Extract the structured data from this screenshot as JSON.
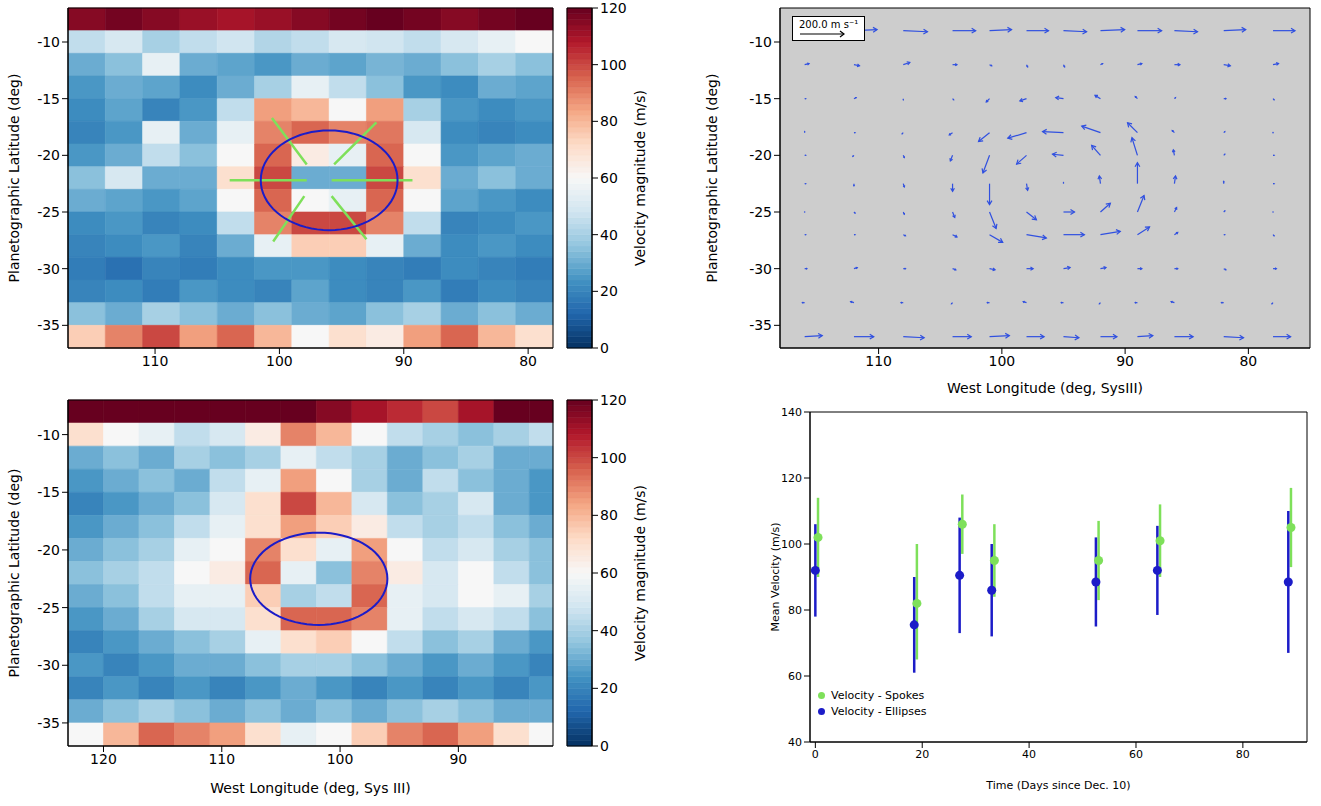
{
  "chart_data": [
    {
      "type": "heatmap",
      "y_label": "Planetographic Latitude (deg)",
      "xlim": [
        117,
        78
      ],
      "ylim": [
        -37,
        -7
      ],
      "xticks": [
        110,
        100,
        90,
        80
      ],
      "yticks": [
        -35,
        -30,
        -25,
        -20,
        -15,
        -10
      ],
      "x_edges": [
        117,
        114,
        111,
        108,
        105,
        102,
        99,
        96,
        93,
        90,
        87,
        84,
        81,
        78
      ],
      "y_edges": [
        -7,
        -9,
        -11,
        -13,
        -15,
        -17,
        -19,
        -21,
        -23,
        -25,
        -27,
        -29,
        -31,
        -33,
        -35,
        -37
      ],
      "cells": [
        [
          115,
          118,
          115,
          112,
          110,
          112,
          115,
          118,
          120,
          118,
          115,
          118,
          120
        ],
        [
          45,
          50,
          40,
          45,
          48,
          42,
          45,
          50,
          48,
          45,
          50,
          55,
          60
        ],
        [
          30,
          35,
          55,
          30,
          28,
          25,
          30,
          28,
          32,
          30,
          35,
          40,
          35
        ],
        [
          25,
          30,
          28,
          22,
          30,
          40,
          55,
          45,
          35,
          25,
          22,
          30,
          28
        ],
        [
          22,
          28,
          20,
          25,
          45,
          85,
          80,
          60,
          85,
          40,
          25,
          22,
          25
        ],
        [
          20,
          25,
          55,
          30,
          55,
          90,
          95,
          90,
          92,
          50,
          22,
          20,
          22
        ],
        [
          25,
          30,
          45,
          35,
          60,
          95,
          65,
          55,
          95,
          60,
          25,
          28,
          30
        ],
        [
          35,
          50,
          30,
          30,
          70,
          100,
          30,
          30,
          100,
          70,
          30,
          35,
          30
        ],
        [
          30,
          28,
          25,
          28,
          60,
          95,
          60,
          55,
          95,
          60,
          28,
          25,
          22
        ],
        [
          22,
          25,
          20,
          22,
          45,
          90,
          100,
          100,
          90,
          45,
          20,
          22,
          25
        ],
        [
          20,
          22,
          25,
          20,
          30,
          55,
          75,
          75,
          55,
          30,
          22,
          25,
          22
        ],
        [
          18,
          15,
          20,
          18,
          22,
          25,
          25,
          22,
          20,
          18,
          22,
          20,
          18
        ],
        [
          20,
          22,
          18,
          25,
          22,
          20,
          28,
          22,
          20,
          25,
          18,
          22,
          20
        ],
        [
          35,
          30,
          40,
          35,
          30,
          35,
          30,
          28,
          35,
          40,
          30,
          35,
          30
        ],
        [
          75,
          90,
          100,
          85,
          95,
          80,
          60,
          70,
          65,
          85,
          95,
          80,
          70
        ]
      ],
      "colorbar": {
        "range": [
          0,
          120
        ],
        "ticks": [
          0,
          20,
          40,
          60,
          80,
          100,
          120
        ],
        "label": "Velocity magnitude (m/s)"
      },
      "ellipse": {
        "center": [
          96,
          -22.2
        ],
        "radii": [
          5.5,
          4.4
        ],
        "color": "#1c1cc8"
      },
      "spokes": {
        "color": "#7ee05a",
        "segments": [
          [
            104,
            -22.2,
            97.8,
            -22.2
          ],
          [
            95.8,
            -22.2,
            89.3,
            -22.2
          ],
          [
            100.6,
            -16.7,
            97.8,
            -20.8
          ],
          [
            95.8,
            -23.6,
            93,
            -27.4
          ],
          [
            92.2,
            -17.1,
            95.6,
            -20.8
          ],
          [
            98,
            -23.6,
            100.5,
            -27.6
          ]
        ]
      }
    },
    {
      "type": "quiver",
      "x_label": "West Longitude (deg, SysIII)",
      "y_label": "Planetographic Latitude (deg)",
      "xlim": [
        118,
        75
      ],
      "ylim": [
        -37,
        -7
      ],
      "xticks": [
        110,
        100,
        90,
        80
      ],
      "yticks": [
        -35,
        -30,
        -25,
        -20,
        -15,
        -10
      ],
      "color": "#3050e0",
      "x": [
        116,
        112,
        108,
        104,
        101,
        98,
        95,
        92,
        89,
        86,
        82,
        78
      ],
      "y": [
        -9,
        -12,
        -15,
        -18,
        -20,
        -22.5,
        -25,
        -27,
        -30,
        -33,
        -36
      ],
      "u": [
        [
          100,
          105,
          110,
          105,
          100,
          100,
          105,
          110,
          110,
          105,
          100,
          100
        ],
        [
          20,
          25,
          30,
          20,
          10,
          5,
          5,
          10,
          20,
          25,
          30,
          25
        ],
        [
          5,
          10,
          0,
          5,
          -15,
          -30,
          -35,
          -25,
          -10,
          5,
          10,
          5
        ],
        [
          0,
          5,
          -5,
          -15,
          -50,
          -85,
          -95,
          -85,
          -45,
          -10,
          5,
          0
        ],
        [
          5,
          -5,
          5,
          -10,
          -30,
          -45,
          -50,
          -40,
          -25,
          -5,
          5,
          5
        ],
        [
          5,
          0,
          5,
          0,
          0,
          5,
          0,
          -5,
          0,
          5,
          0,
          5
        ],
        [
          0,
          5,
          5,
          10,
          30,
          45,
          50,
          45,
          30,
          10,
          5,
          0
        ],
        [
          5,
          5,
          10,
          20,
          60,
          90,
          95,
          90,
          55,
          15,
          5,
          5
        ],
        [
          10,
          15,
          10,
          15,
          25,
          30,
          30,
          25,
          20,
          15,
          10,
          15
        ],
        [
          -10,
          -15,
          -10,
          -5,
          -10,
          -15,
          -10,
          -5,
          -10,
          -15,
          -10,
          -5
        ],
        [
          80,
          90,
          95,
          85,
          90,
          80,
          70,
          75,
          70,
          85,
          90,
          80
        ]
      ],
      "v": [
        [
          0,
          5,
          -5,
          0,
          5,
          0,
          -5,
          5,
          0,
          -5,
          5,
          0
        ],
        [
          5,
          -5,
          10,
          0,
          -5,
          -10,
          -10,
          5,
          5,
          0,
          -5,
          5
        ],
        [
          0,
          5,
          -5,
          -5,
          -15,
          -10,
          5,
          15,
          10,
          5,
          0,
          -5
        ],
        [
          5,
          0,
          -5,
          -10,
          -40,
          -25,
          5,
          30,
          45,
          10,
          5,
          0
        ],
        [
          0,
          -5,
          -10,
          -25,
          -80,
          -40,
          5,
          45,
          80,
          25,
          5,
          0
        ],
        [
          0,
          -10,
          -15,
          -35,
          -95,
          -30,
          5,
          35,
          95,
          35,
          10,
          0
        ],
        [
          0,
          -5,
          -10,
          -25,
          -75,
          -35,
          0,
          40,
          75,
          20,
          5,
          0
        ],
        [
          0,
          0,
          -5,
          -10,
          -35,
          -15,
          0,
          15,
          35,
          10,
          0,
          -5
        ],
        [
          0,
          5,
          0,
          -5,
          -5,
          0,
          5,
          5,
          0,
          0,
          -5,
          0
        ],
        [
          0,
          5,
          0,
          -5,
          0,
          5,
          0,
          -5,
          0,
          5,
          0,
          -5
        ],
        [
          5,
          0,
          -5,
          0,
          5,
          0,
          -5,
          0,
          5,
          0,
          -5,
          0
        ]
      ],
      "scale": {
        "value": 200,
        "label": "200.0 m s⁻¹"
      }
    },
    {
      "type": "heatmap",
      "x_label": "West Longitude (deg, Sys III)",
      "y_label": "Planetographic Latitude (deg)",
      "xlim": [
        123,
        82
      ],
      "ylim": [
        -37,
        -7
      ],
      "xticks": [
        120,
        110,
        100,
        90
      ],
      "yticks": [
        -35,
        -30,
        -25,
        -20,
        -15,
        -10
      ],
      "x_edges": [
        123,
        120,
        117,
        114,
        111,
        108,
        105,
        102,
        99,
        96,
        93,
        90,
        87,
        84,
        82
      ],
      "y_edges": [
        -7,
        -9,
        -11,
        -13,
        -15,
        -17,
        -19,
        -21,
        -23,
        -25,
        -27,
        -29,
        -31,
        -33,
        -35,
        -37
      ],
      "cells": [
        [
          120,
          120,
          120,
          120,
          120,
          120,
          120,
          115,
          110,
          105,
          100,
          110,
          120,
          120
        ],
        [
          70,
          60,
          55,
          45,
          50,
          65,
          90,
          80,
          60,
          45,
          40,
          35,
          40,
          45
        ],
        [
          30,
          35,
          30,
          40,
          35,
          40,
          55,
          45,
          40,
          30,
          35,
          40,
          30,
          30
        ],
        [
          25,
          30,
          35,
          30,
          45,
          55,
          85,
          60,
          40,
          30,
          45,
          35,
          30,
          25
        ],
        [
          20,
          25,
          30,
          35,
          50,
          70,
          100,
          80,
          50,
          35,
          40,
          50,
          30,
          25
        ],
        [
          25,
          30,
          35,
          45,
          55,
          70,
          85,
          75,
          65,
          45,
          40,
          45,
          35,
          30
        ],
        [
          30,
          35,
          40,
          55,
          60,
          90,
          70,
          55,
          85,
          60,
          45,
          50,
          40,
          35
        ],
        [
          35,
          40,
          45,
          60,
          65,
          95,
          55,
          35,
          90,
          65,
          50,
          60,
          45,
          35
        ],
        [
          30,
          35,
          45,
          55,
          55,
          75,
          40,
          45,
          95,
          55,
          50,
          60,
          55,
          40
        ],
        [
          25,
          30,
          40,
          50,
          50,
          70,
          95,
          95,
          90,
          55,
          45,
          50,
          45,
          35
        ],
        [
          20,
          25,
          30,
          35,
          40,
          55,
          70,
          75,
          60,
          45,
          35,
          40,
          30,
          25
        ],
        [
          25,
          20,
          25,
          30,
          30,
          35,
          40,
          40,
          35,
          30,
          25,
          30,
          25,
          20
        ],
        [
          20,
          25,
          20,
          25,
          20,
          25,
          30,
          25,
          20,
          25,
          20,
          25,
          20,
          25
        ],
        [
          30,
          35,
          40,
          35,
          30,
          35,
          30,
          35,
          30,
          35,
          40,
          35,
          30,
          30
        ],
        [
          60,
          80,
          95,
          90,
          85,
          70,
          55,
          60,
          75,
          90,
          95,
          85,
          70,
          60
        ]
      ],
      "colorbar": {
        "range": [
          0,
          120
        ],
        "ticks": [
          0,
          20,
          40,
          60,
          80,
          100,
          120
        ],
        "label": "Velocity magnitude (m/s)"
      },
      "ellipse": {
        "center": [
          101.8,
          -22.5
        ],
        "radii": [
          5.8,
          4.0
        ],
        "color": "#1c1cc8"
      }
    },
    {
      "type": "scatter",
      "x_label": "Time (Days since Dec. 10)",
      "y_label": "Mean Velocity (m/s)",
      "xlim": [
        -1,
        92
      ],
      "ylim": [
        40,
        140
      ],
      "xticks": [
        0,
        20,
        40,
        60,
        80
      ],
      "yticks": [
        40,
        60,
        80,
        100,
        120,
        140
      ],
      "legend": "lower left",
      "series": [
        {
          "name": "Velocity - Spokes",
          "color": "#7ee05a",
          "marker": "circle",
          "x": [
            0.5,
            19,
            27.5,
            33.5,
            53,
            64.5,
            89
          ],
          "values": [
            102,
            82,
            106,
            95,
            95,
            101,
            105
          ],
          "errors": [
            [
              12,
              12
            ],
            [
              17,
              18
            ],
            [
              9,
              9
            ],
            [
              11,
              11
            ],
            [
              12,
              12
            ],
            [
              11,
              11
            ],
            [
              12,
              12
            ]
          ]
        },
        {
          "name": "Velocity - Ellipses",
          "color": "#1c1cc8",
          "marker": "circle",
          "x": [
            0,
            18.5,
            27,
            33,
            52.5,
            64,
            88.5
          ],
          "values": [
            92,
            75.5,
            90.5,
            86,
            88.5,
            92,
            88.5
          ],
          "errors": [
            [
              14,
              14
            ],
            [
              14.5,
              14.5
            ],
            [
              17.5,
              17.5
            ],
            [
              14,
              14
            ],
            [
              13.5,
              13.5
            ],
            [
              13.5,
              13.5
            ],
            [
              21.5,
              21.5
            ]
          ]
        }
      ]
    }
  ]
}
